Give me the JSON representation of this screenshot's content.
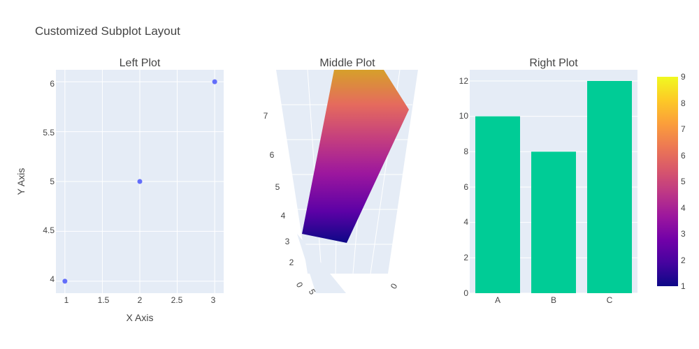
{
  "figure_title": "Customized Subplot Layout",
  "chart_data": [
    {
      "type": "scatter",
      "title": "Left Plot",
      "xlabel": "X Axis",
      "ylabel": "Y Axis",
      "x": [
        1,
        2,
        3
      ],
      "y": [
        4,
        5,
        6
      ],
      "marker_color": "#636efa",
      "xlim": [
        0.88,
        3.12
      ],
      "ylim": [
        3.88,
        6.12
      ],
      "xticks": [
        "1",
        "1.5",
        "2",
        "2.5",
        "3"
      ],
      "yticks": [
        "4",
        "4.5",
        "5",
        "5.5",
        "6"
      ]
    },
    {
      "type": "surface3d",
      "title": "Middle Plot",
      "z_tick_labels": [
        "7",
        "6",
        "5",
        "4",
        "3",
        "2"
      ],
      "bottom_tick_labels": [
        "0",
        "0",
        "5"
      ],
      "colorscale": "plasma"
    },
    {
      "type": "bar",
      "title": "Right Plot",
      "categories": [
        "A",
        "B",
        "C"
      ],
      "values": [
        10,
        8,
        12
      ],
      "bar_color": "#00cc96",
      "ylim": [
        0,
        12.63
      ],
      "yticks": [
        "0",
        "2",
        "4",
        "6",
        "8",
        "10",
        "12"
      ]
    }
  ],
  "colorbar": {
    "ticks": [
      "1",
      "2",
      "3",
      "4",
      "5",
      "6",
      "7",
      "8",
      "9"
    ],
    "colorscale": [
      "#0d0887",
      "#46039f",
      "#7201a8",
      "#9c179e",
      "#bd3786",
      "#d8576b",
      "#ed7953",
      "#fb9f3a",
      "#fdca26",
      "#f0f921"
    ]
  }
}
